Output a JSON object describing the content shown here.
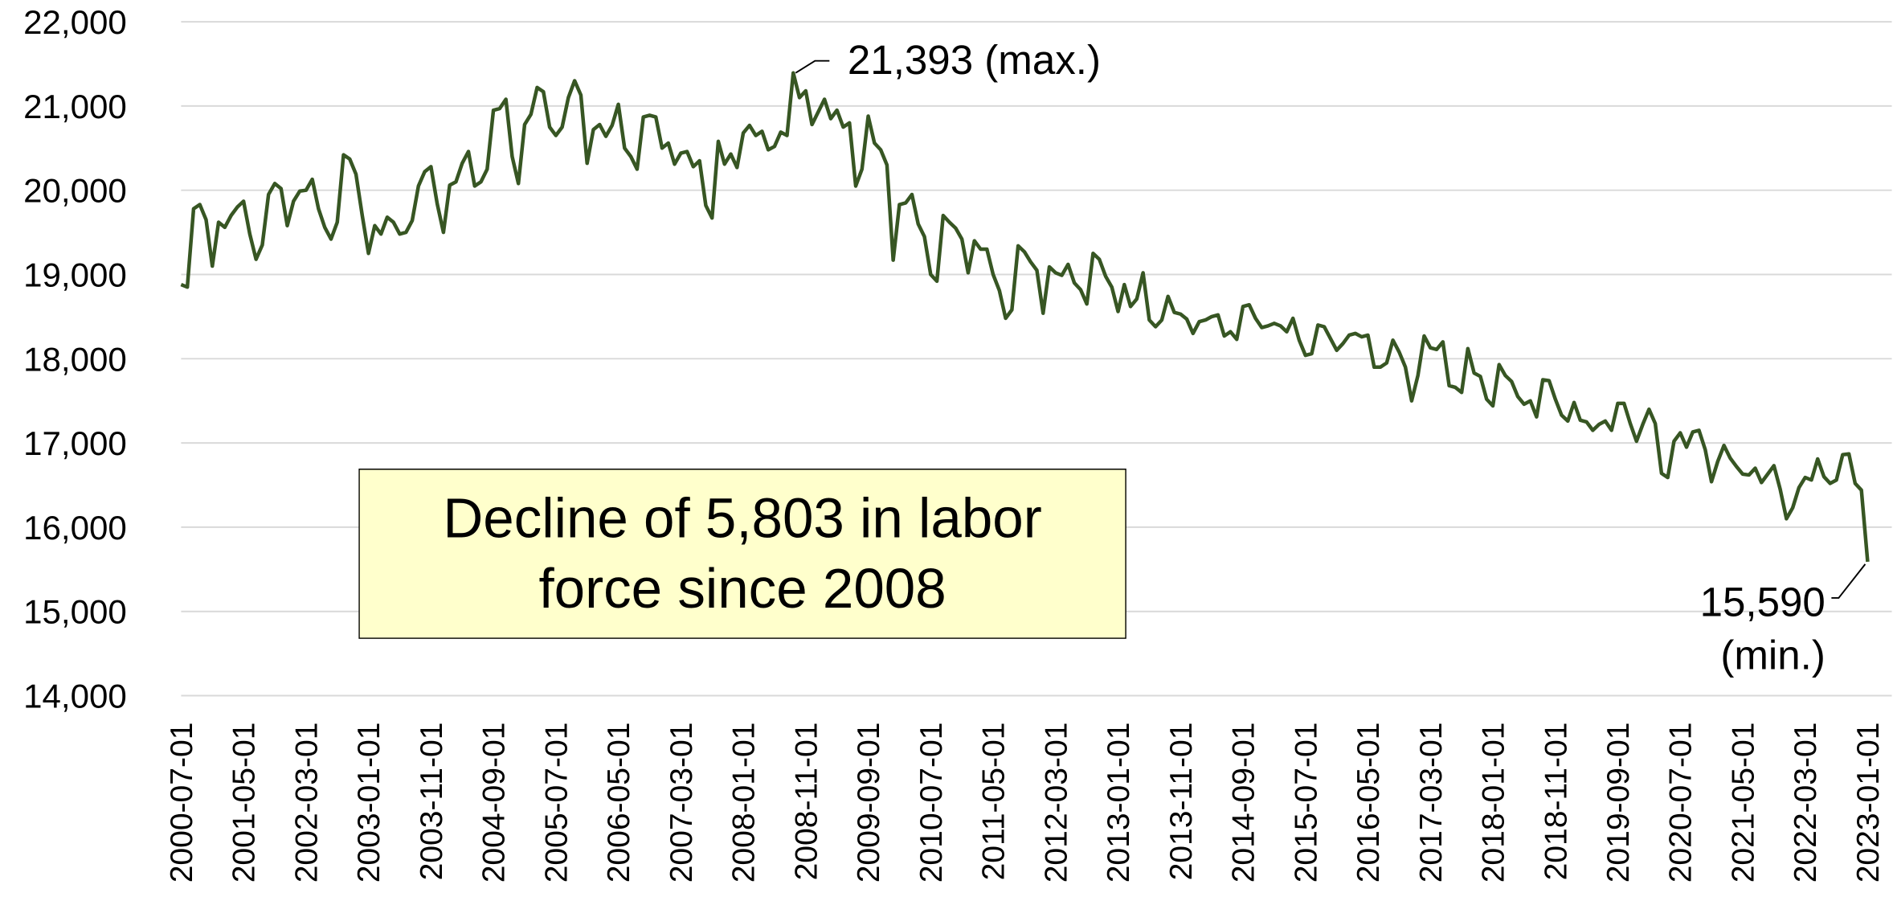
{
  "chart_data": {
    "type": "line",
    "categories": [
      "2000-07-01",
      null,
      null,
      null,
      null,
      null,
      null,
      null,
      null,
      null,
      "2001-05-01",
      null,
      null,
      null,
      null,
      null,
      null,
      null,
      null,
      null,
      "2002-03-01",
      null,
      null,
      null,
      null,
      null,
      null,
      null,
      null,
      null,
      "2003-01-01",
      null,
      null,
      null,
      null,
      null,
      null,
      null,
      null,
      null,
      "2003-11-01",
      null,
      null,
      null,
      null,
      null,
      null,
      null,
      null,
      null,
      "2004-09-01",
      null,
      null,
      null,
      null,
      null,
      null,
      null,
      null,
      null,
      "2005-07-01",
      null,
      null,
      null,
      null,
      null,
      null,
      null,
      null,
      null,
      "2006-05-01",
      null,
      null,
      null,
      null,
      null,
      null,
      null,
      null,
      null,
      "2007-03-01",
      null,
      null,
      null,
      null,
      null,
      null,
      null,
      null,
      null,
      "2008-01-01",
      null,
      null,
      null,
      null,
      null,
      null,
      null,
      null,
      null,
      "2008-11-01",
      null,
      null,
      null,
      null,
      null,
      null,
      null,
      null,
      null,
      "2009-09-01",
      null,
      null,
      null,
      null,
      null,
      null,
      null,
      null,
      null,
      "2010-07-01",
      null,
      null,
      null,
      null,
      null,
      null,
      null,
      null,
      null,
      "2011-05-01",
      null,
      null,
      null,
      null,
      null,
      null,
      null,
      null,
      null,
      "2012-03-01",
      null,
      null,
      null,
      null,
      null,
      null,
      null,
      null,
      null,
      "2013-01-01",
      null,
      null,
      null,
      null,
      null,
      null,
      null,
      null,
      null,
      "2013-11-01",
      null,
      null,
      null,
      null,
      null,
      null,
      null,
      null,
      null,
      "2014-09-01",
      null,
      null,
      null,
      null,
      null,
      null,
      null,
      null,
      null,
      "2015-07-01",
      null,
      null,
      null,
      null,
      null,
      null,
      null,
      null,
      null,
      "2016-05-01",
      null,
      null,
      null,
      null,
      null,
      null,
      null,
      null,
      null,
      "2017-03-01",
      null,
      null,
      null,
      null,
      null,
      null,
      null,
      null,
      null,
      "2018-01-01",
      null,
      null,
      null,
      null,
      null,
      null,
      null,
      null,
      null,
      "2018-11-01",
      null,
      null,
      null,
      null,
      null,
      null,
      null,
      null,
      null,
      "2019-09-01",
      null,
      null,
      null,
      null,
      null,
      null,
      null,
      null,
      null,
      "2020-07-01",
      null,
      null,
      null,
      null,
      null,
      null,
      null,
      null,
      null,
      "2021-05-01",
      null,
      null,
      null,
      null,
      null,
      null,
      null,
      null,
      null,
      "2022-03-01",
      null,
      null,
      null,
      null,
      null,
      null,
      null,
      null,
      null,
      "2023-01-01"
    ],
    "series": [
      {
        "color": "#375623",
        "values": [
          18880,
          18850,
          19780,
          19830,
          19650,
          19100,
          19620,
          19560,
          19700,
          19800,
          19870,
          19480,
          19180,
          19350,
          19950,
          20080,
          20020,
          19580,
          19870,
          19990,
          20000,
          20130,
          19780,
          19560,
          19420,
          19620,
          20420,
          20370,
          20190,
          19700,
          19250,
          19580,
          19480,
          19680,
          19620,
          19480,
          19500,
          19640,
          20050,
          20220,
          20280,
          19840,
          19500,
          20060,
          20100,
          20320,
          20460,
          20050,
          20100,
          20250,
          20950,
          20970,
          21080,
          20400,
          20080,
          20780,
          20900,
          21220,
          21170,
          20750,
          20650,
          20750,
          21100,
          21300,
          21130,
          20320,
          20720,
          20780,
          20640,
          20770,
          21020,
          20500,
          20400,
          20250,
          20870,
          20890,
          20870,
          20500,
          20560,
          20310,
          20440,
          20460,
          20280,
          20350,
          19820,
          19670,
          20580,
          20310,
          20430,
          20270,
          20680,
          20770,
          20650,
          20700,
          20480,
          20520,
          20690,
          20650,
          21393,
          21100,
          21180,
          20780,
          20930,
          21080,
          20850,
          20950,
          20750,
          20800,
          20050,
          20250,
          20880,
          20560,
          20480,
          20300,
          19170,
          19830,
          19850,
          19950,
          19600,
          19450,
          19000,
          18920,
          19700,
          19620,
          19550,
          19420,
          19020,
          19400,
          19300,
          19300,
          19000,
          18810,
          18480,
          18580,
          19340,
          19270,
          19150,
          19050,
          18540,
          19090,
          19020,
          18990,
          19120,
          18900,
          18820,
          18650,
          19250,
          19180,
          18980,
          18850,
          18560,
          18880,
          18620,
          18710,
          19020,
          18460,
          18380,
          18460,
          18740,
          18550,
          18530,
          18470,
          18300,
          18440,
          18460,
          18500,
          18520,
          18270,
          18320,
          18230,
          18620,
          18640,
          18480,
          18370,
          18390,
          18420,
          18390,
          18320,
          18480,
          18220,
          18040,
          18060,
          18400,
          18380,
          18240,
          18100,
          18180,
          18280,
          18300,
          18260,
          18280,
          17900,
          17900,
          17950,
          18220,
          18080,
          17900,
          17500,
          17800,
          18270,
          18130,
          18110,
          18200,
          17680,
          17660,
          17600,
          18120,
          17830,
          17790,
          17520,
          17440,
          17930,
          17800,
          17730,
          17550,
          17460,
          17500,
          17310,
          17750,
          17740,
          17520,
          17330,
          17260,
          17480,
          17270,
          17250,
          17150,
          17220,
          17260,
          17150,
          17470,
          17470,
          17230,
          17020,
          17220,
          17400,
          17230,
          16640,
          16590,
          17020,
          17120,
          16950,
          17130,
          17150,
          16920,
          16540,
          16780,
          16970,
          16820,
          16720,
          16630,
          16620,
          16700,
          16530,
          16630,
          16730,
          16450,
          16100,
          16230,
          16470,
          16590,
          16560,
          16810,
          16600,
          16520,
          16560,
          16860,
          16870,
          16520,
          16440,
          15590
        ]
      }
    ],
    "ylim": [
      14000,
      22000
    ],
    "yticks": [
      {
        "value": 14000,
        "label": "14,000"
      },
      {
        "value": 15000,
        "label": "15,000"
      },
      {
        "value": 16000,
        "label": "16,000"
      },
      {
        "value": 17000,
        "label": "17,000"
      },
      {
        "value": 18000,
        "label": "18,000"
      },
      {
        "value": 19000,
        "label": "19,000"
      },
      {
        "value": 20000,
        "label": "20,000"
      },
      {
        "value": 21000,
        "label": "21,000"
      },
      {
        "value": 22000,
        "label": "22,000"
      }
    ],
    "grid": true,
    "annotations": {
      "max": "21,393 (max.)",
      "min": [
        "15,590",
        "(min.)"
      ],
      "note": "Decline of 5,803 in labor force since 2008"
    }
  }
}
